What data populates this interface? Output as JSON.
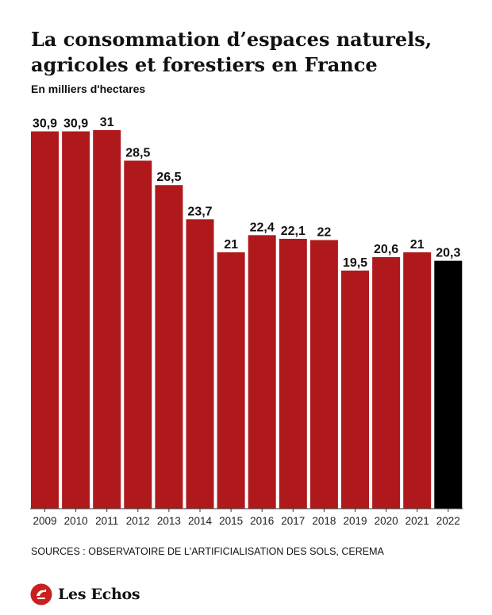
{
  "header": {
    "title_line1": "La consommation d’espaces naturels,",
    "title_line2": "agricoles et forestiers en France",
    "subtitle": "En milliers d'hectares"
  },
  "chart_data": {
    "type": "bar",
    "title": "La consommation d’espaces naturels, agricoles et forestiers en France",
    "ylabel": "En milliers d'hectares",
    "xlabel": "",
    "categories": [
      "2009",
      "2010",
      "2011",
      "2012",
      "2013",
      "2014",
      "2015",
      "2016",
      "2017",
      "2018",
      "2019",
      "2020",
      "2021",
      "2022"
    ],
    "values": [
      30.9,
      30.9,
      31,
      28.5,
      26.5,
      23.7,
      21,
      22.4,
      22.1,
      22,
      19.5,
      20.6,
      21,
      20.3
    ],
    "value_labels": [
      "30,9",
      "30,9",
      "31",
      "28,5",
      "26,5",
      "23,7",
      "21",
      "22,4",
      "22,1",
      "22",
      "19,5",
      "20,6",
      "21",
      "20,3"
    ],
    "ylim": [
      0,
      31
    ],
    "grid": false,
    "colors": {
      "bar": "#b0191c",
      "highlight": "#000000",
      "highlight_index": 13
    }
  },
  "footer": {
    "sources": "SOURCES : OBSERVATOIRE DE L'ARTIFICIALISATION DES SOLS, CEREMA",
    "brand": "Les Echos",
    "brand_color": "#c8201d",
    "logo_icon": "les-echos-logo-icon"
  }
}
